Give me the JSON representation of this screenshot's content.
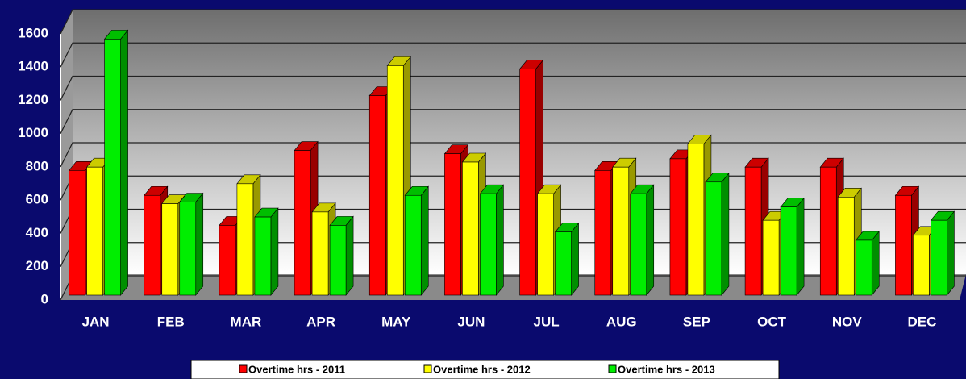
{
  "chart_data": {
    "type": "bar3d",
    "categories": [
      "JAN",
      "FEB",
      "MAR",
      "APR",
      "MAY",
      "JUN",
      "JUL",
      "AUG",
      "SEP",
      "OCT",
      "NOV",
      "DEC"
    ],
    "series": [
      {
        "name": "Overtime hrs - 2011",
        "color": "#ff0000",
        "values": [
          750,
          600,
          420,
          870,
          1200,
          850,
          1360,
          750,
          820,
          770,
          770,
          600
        ]
      },
      {
        "name": "Overtime hrs - 2012",
        "color": "#ffff00",
        "values": [
          770,
          550,
          670,
          500,
          1380,
          800,
          610,
          770,
          910,
          450,
          590,
          360
        ]
      },
      {
        "name": "Overtime hrs - 2013",
        "color": "#00ee00",
        "values": [
          1540,
          560,
          470,
          420,
          600,
          610,
          380,
          610,
          680,
          530,
          330,
          450
        ]
      }
    ],
    "ylim": [
      0,
      1600
    ],
    "yticks": [
      0,
      200,
      400,
      600,
      800,
      1000,
      1200,
      1400,
      1600
    ],
    "grid": true
  }
}
